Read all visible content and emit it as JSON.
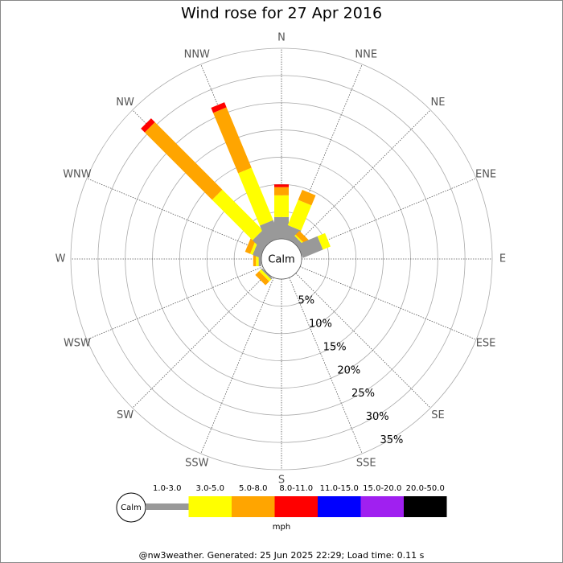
{
  "chart_data": {
    "type": "windrose",
    "title": "Wind rose for 27 Apr 2016",
    "directions": [
      "N",
      "NNE",
      "NE",
      "ENE",
      "E",
      "ESE",
      "SE",
      "SSE",
      "S",
      "SSW",
      "SW",
      "WSW",
      "W",
      "WNW",
      "NW",
      "NNW"
    ],
    "calm_label": "Calm",
    "unit": "mph",
    "ylim": [
      0,
      35
    ],
    "yticks": [
      {
        "value": 5,
        "label": "5%"
      },
      {
        "value": 10,
        "label": "10%"
      },
      {
        "value": 15,
        "label": "15%"
      },
      {
        "value": 20,
        "label": "20%"
      },
      {
        "value": 25,
        "label": "25%"
      },
      {
        "value": 30,
        "label": "30%"
      },
      {
        "value": 35,
        "label": "35%"
      }
    ],
    "series": [
      {
        "name": "1.0-3.0",
        "color": "#999999",
        "values": [
          4,
          2.5,
          1,
          4,
          0,
          0,
          0,
          0,
          0,
          0,
          0.3,
          0,
          0.5,
          1.5,
          2.5,
          3.5
        ]
      },
      {
        "name": "3.0-5.0",
        "color": "#ffff00",
        "values": [
          4,
          5,
          0.3,
          1.5,
          0,
          0,
          0,
          0,
          0,
          0,
          0.5,
          0,
          0.5,
          0.5,
          10.5,
          10.4
        ]
      },
      {
        "name": "5.0-8.0",
        "color": "#ffa500",
        "values": [
          1.5,
          2,
          1,
          0,
          0,
          0,
          0,
          0,
          0,
          0,
          1,
          0,
          0.5,
          1,
          17.5,
          12
        ]
      },
      {
        "name": "8.0-11.0",
        "color": "#ff0000",
        "values": [
          0.5,
          0,
          0,
          0,
          0,
          0,
          0,
          0,
          0,
          0,
          0,
          0,
          0,
          0,
          1,
          1
        ]
      },
      {
        "name": "11.0-15.0",
        "color": "#0000ff",
        "values": [
          0,
          0,
          0,
          0,
          0,
          0,
          0,
          0,
          0,
          0,
          0,
          0,
          0,
          0,
          0,
          0
        ]
      },
      {
        "name": "15.0-20.0",
        "color": "#a020f0",
        "values": [
          0,
          0,
          0,
          0,
          0,
          0,
          0,
          0,
          0,
          0,
          0,
          0,
          0,
          0,
          0,
          0
        ]
      },
      {
        "name": "20.0-50.0",
        "color": "#000000",
        "values": [
          0,
          0,
          0,
          0,
          0,
          0,
          0,
          0,
          0,
          0,
          0,
          0,
          0,
          0,
          0,
          0
        ]
      }
    ]
  },
  "footer": "@nw3weather.  Generated: 25 Jun 2025 22:29; Load time: 0.11 s"
}
